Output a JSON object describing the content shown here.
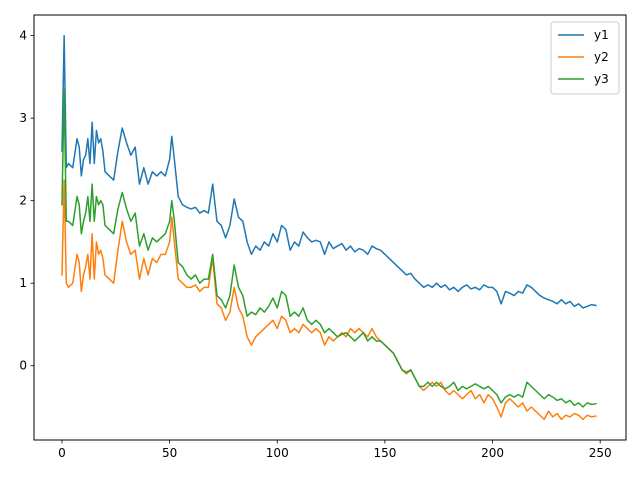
{
  "chart_data": {
    "type": "line",
    "title": "",
    "xlabel": "",
    "ylabel": "",
    "xlim": [
      -13,
      262
    ],
    "ylim": [
      -0.9,
      4.25
    ],
    "xticks": [
      0,
      50,
      100,
      150,
      200,
      250
    ],
    "yticks": [
      0,
      1,
      2,
      3,
      4
    ],
    "grid": false,
    "legend_position": "top-right",
    "series": [
      {
        "name": "y1",
        "color": "#1f77b4",
        "x": [
          0,
          1,
          2,
          3,
          5,
          7,
          8,
          9,
          10,
          11,
          12,
          13,
          14,
          15,
          16,
          17,
          18,
          19,
          20,
          22,
          24,
          26,
          28,
          30,
          32,
          34,
          36,
          38,
          40,
          42,
          44,
          46,
          48,
          50,
          51,
          52,
          54,
          56,
          58,
          60,
          62,
          64,
          66,
          68,
          70,
          72,
          74,
          76,
          78,
          80,
          82,
          84,
          86,
          88,
          90,
          92,
          94,
          96,
          98,
          100,
          102,
          104,
          106,
          108,
          110,
          112,
          114,
          116,
          118,
          120,
          122,
          124,
          126,
          128,
          130,
          132,
          134,
          136,
          138,
          140,
          142,
          144,
          146,
          148,
          150,
          152,
          154,
          156,
          158,
          160,
          162,
          164,
          166,
          168,
          170,
          172,
          174,
          176,
          178,
          180,
          182,
          184,
          186,
          188,
          190,
          192,
          194,
          196,
          198,
          200,
          202,
          204,
          206,
          208,
          210,
          212,
          214,
          216,
          218,
          220,
          222,
          224,
          226,
          228,
          230,
          232,
          234,
          236,
          238,
          240,
          242,
          244,
          246,
          248
        ],
        "y": [
          2.6,
          4.0,
          2.4,
          2.45,
          2.4,
          2.75,
          2.65,
          2.3,
          2.5,
          2.55,
          2.75,
          2.45,
          2.95,
          2.45,
          2.85,
          2.7,
          2.75,
          2.6,
          2.35,
          2.3,
          2.25,
          2.6,
          2.88,
          2.7,
          2.55,
          2.65,
          2.2,
          2.4,
          2.2,
          2.35,
          2.3,
          2.35,
          2.3,
          2.5,
          2.78,
          2.55,
          2.05,
          1.95,
          1.92,
          1.9,
          1.92,
          1.85,
          1.88,
          1.85,
          2.2,
          1.75,
          1.7,
          1.55,
          1.7,
          2.02,
          1.8,
          1.75,
          1.5,
          1.35,
          1.45,
          1.4,
          1.5,
          1.45,
          1.6,
          1.5,
          1.7,
          1.65,
          1.4,
          1.5,
          1.45,
          1.62,
          1.55,
          1.5,
          1.52,
          1.5,
          1.35,
          1.5,
          1.42,
          1.45,
          1.48,
          1.4,
          1.45,
          1.38,
          1.42,
          1.4,
          1.35,
          1.45,
          1.42,
          1.4,
          1.35,
          1.3,
          1.25,
          1.2,
          1.15,
          1.1,
          1.12,
          1.05,
          1.0,
          0.95,
          0.98,
          0.95,
          1.0,
          0.95,
          0.98,
          0.92,
          0.95,
          0.9,
          0.95,
          0.98,
          0.93,
          0.95,
          0.92,
          0.98,
          0.95,
          0.95,
          0.9,
          0.75,
          0.9,
          0.88,
          0.85,
          0.9,
          0.88,
          0.98,
          0.95,
          0.9,
          0.85,
          0.82,
          0.8,
          0.78,
          0.75,
          0.8,
          0.75,
          0.78,
          0.72,
          0.75,
          0.7,
          0.72,
          0.74,
          0.73
        ]
      },
      {
        "name": "y2",
        "color": "#ff7f0e",
        "x": [
          0,
          1,
          2,
          3,
          5,
          7,
          8,
          9,
          10,
          11,
          12,
          13,
          14,
          15,
          16,
          17,
          18,
          19,
          20,
          22,
          24,
          26,
          28,
          30,
          32,
          34,
          36,
          38,
          40,
          42,
          44,
          46,
          48,
          50,
          51,
          52,
          54,
          56,
          58,
          60,
          62,
          64,
          66,
          68,
          70,
          72,
          74,
          76,
          78,
          80,
          82,
          84,
          86,
          88,
          90,
          92,
          94,
          96,
          98,
          100,
          102,
          104,
          106,
          108,
          110,
          112,
          114,
          116,
          118,
          120,
          122,
          124,
          126,
          128,
          130,
          132,
          134,
          136,
          138,
          140,
          142,
          144,
          146,
          148,
          150,
          152,
          154,
          156,
          158,
          160,
          162,
          164,
          166,
          168,
          170,
          172,
          174,
          176,
          178,
          180,
          182,
          184,
          186,
          188,
          190,
          192,
          194,
          196,
          198,
          200,
          202,
          204,
          206,
          208,
          210,
          212,
          214,
          216,
          218,
          220,
          222,
          224,
          226,
          228,
          230,
          232,
          234,
          236,
          238,
          240,
          242,
          244,
          246,
          248
        ],
        "y": [
          1.1,
          2.25,
          1.0,
          0.95,
          1.0,
          1.35,
          1.25,
          0.9,
          1.1,
          1.2,
          1.35,
          1.05,
          1.6,
          1.05,
          1.5,
          1.35,
          1.4,
          1.3,
          1.1,
          1.05,
          1.0,
          1.4,
          1.75,
          1.5,
          1.35,
          1.4,
          1.05,
          1.3,
          1.1,
          1.3,
          1.25,
          1.35,
          1.35,
          1.5,
          1.8,
          1.55,
          1.05,
          1.0,
          0.95,
          0.95,
          0.98,
          0.9,
          0.95,
          0.95,
          1.3,
          0.75,
          0.7,
          0.55,
          0.65,
          0.95,
          0.7,
          0.6,
          0.35,
          0.25,
          0.35,
          0.4,
          0.45,
          0.5,
          0.55,
          0.45,
          0.6,
          0.55,
          0.4,
          0.45,
          0.4,
          0.5,
          0.45,
          0.4,
          0.45,
          0.4,
          0.25,
          0.35,
          0.3,
          0.35,
          0.4,
          0.35,
          0.45,
          0.4,
          0.45,
          0.4,
          0.35,
          0.45,
          0.35,
          0.3,
          0.25,
          0.2,
          0.15,
          0.05,
          -0.05,
          -0.1,
          -0.05,
          -0.15,
          -0.25,
          -0.3,
          -0.25,
          -0.2,
          -0.25,
          -0.2,
          -0.3,
          -0.35,
          -0.3,
          -0.35,
          -0.4,
          -0.35,
          -0.3,
          -0.4,
          -0.35,
          -0.45,
          -0.35,
          -0.4,
          -0.5,
          -0.62,
          -0.45,
          -0.4,
          -0.45,
          -0.5,
          -0.45,
          -0.55,
          -0.5,
          -0.55,
          -0.6,
          -0.65,
          -0.55,
          -0.62,
          -0.58,
          -0.65,
          -0.6,
          -0.62,
          -0.58,
          -0.6,
          -0.65,
          -0.6,
          -0.62,
          -0.61
        ]
      },
      {
        "name": "y3",
        "color": "#2ca02c",
        "x": [
          0,
          1,
          2,
          3,
          5,
          7,
          8,
          9,
          10,
          11,
          12,
          13,
          14,
          15,
          16,
          17,
          18,
          19,
          20,
          22,
          24,
          26,
          28,
          30,
          32,
          34,
          36,
          38,
          40,
          42,
          44,
          46,
          48,
          50,
          51,
          52,
          54,
          56,
          58,
          60,
          62,
          64,
          66,
          68,
          70,
          72,
          74,
          76,
          78,
          80,
          82,
          84,
          86,
          88,
          90,
          92,
          94,
          96,
          98,
          100,
          102,
          104,
          106,
          108,
          110,
          112,
          114,
          116,
          118,
          120,
          122,
          124,
          126,
          128,
          130,
          132,
          134,
          136,
          138,
          140,
          142,
          144,
          146,
          148,
          150,
          152,
          154,
          156,
          158,
          160,
          162,
          164,
          166,
          168,
          170,
          172,
          174,
          176,
          178,
          180,
          182,
          184,
          186,
          188,
          190,
          192,
          194,
          196,
          198,
          200,
          202,
          204,
          206,
          208,
          210,
          212,
          214,
          216,
          218,
          220,
          222,
          224,
          226,
          228,
          230,
          232,
          234,
          236,
          238,
          240,
          242,
          244,
          246,
          248
        ],
        "y": [
          1.95,
          3.35,
          1.75,
          1.75,
          1.7,
          2.05,
          1.95,
          1.6,
          1.75,
          1.85,
          2.05,
          1.75,
          2.2,
          1.75,
          2.05,
          1.95,
          2.0,
          1.95,
          1.7,
          1.65,
          1.6,
          1.9,
          2.1,
          1.9,
          1.75,
          1.85,
          1.45,
          1.6,
          1.4,
          1.55,
          1.5,
          1.55,
          1.6,
          1.75,
          2.0,
          1.8,
          1.25,
          1.2,
          1.1,
          1.05,
          1.1,
          1.0,
          1.05,
          1.05,
          1.35,
          0.85,
          0.8,
          0.7,
          0.85,
          1.22,
          0.95,
          0.85,
          0.6,
          0.65,
          0.62,
          0.7,
          0.65,
          0.72,
          0.82,
          0.7,
          0.9,
          0.85,
          0.6,
          0.65,
          0.6,
          0.7,
          0.55,
          0.5,
          0.55,
          0.5,
          0.4,
          0.45,
          0.4,
          0.35,
          0.38,
          0.4,
          0.35,
          0.3,
          0.35,
          0.4,
          0.3,
          0.35,
          0.3,
          0.3,
          0.25,
          0.2,
          0.15,
          0.05,
          -0.05,
          -0.08,
          -0.05,
          -0.15,
          -0.25,
          -0.25,
          -0.2,
          -0.25,
          -0.2,
          -0.25,
          -0.28,
          -0.25,
          -0.2,
          -0.3,
          -0.25,
          -0.28,
          -0.25,
          -0.22,
          -0.25,
          -0.28,
          -0.25,
          -0.3,
          -0.35,
          -0.45,
          -0.38,
          -0.35,
          -0.38,
          -0.35,
          -0.38,
          -0.2,
          -0.25,
          -0.3,
          -0.35,
          -0.4,
          -0.35,
          -0.38,
          -0.42,
          -0.4,
          -0.45,
          -0.42,
          -0.48,
          -0.45,
          -0.5,
          -0.45,
          -0.47,
          -0.46
        ]
      }
    ]
  }
}
